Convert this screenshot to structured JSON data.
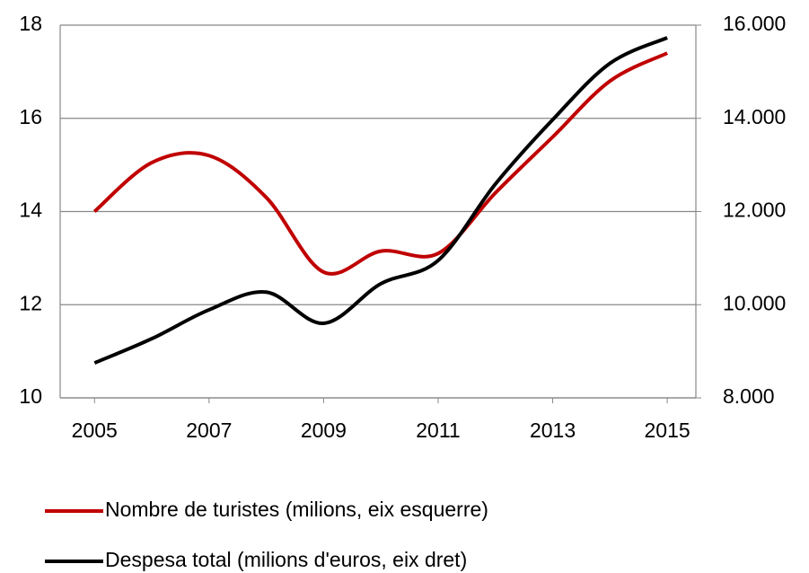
{
  "chart_data": {
    "type": "line",
    "x": [
      2005,
      2006,
      2007,
      2008,
      2009,
      2010,
      2011,
      2012,
      2013,
      2014,
      2015
    ],
    "xlim": [
      2004.4,
      2015.5
    ],
    "xticks": [
      2005,
      2007,
      2009,
      2011,
      2013,
      2015
    ],
    "ylim": [
      10,
      18
    ],
    "yticks": [
      10,
      12,
      14,
      16,
      18
    ],
    "y2lim": [
      8000,
      16000
    ],
    "y2ticks": [
      {
        "value": 8000,
        "label": "8.000"
      },
      {
        "value": 10000,
        "label": "10.000"
      },
      {
        "value": 12000,
        "label": "12.000"
      },
      {
        "value": 14000,
        "label": "14.000"
      },
      {
        "value": 16000,
        "label": "16.000"
      }
    ],
    "grid": true,
    "smooth": true,
    "legend": "bottom",
    "series": [
      {
        "name": "Nombre de turistes (milions, eix esquerre)",
        "color": "#c00000",
        "values": [
          14.0,
          15.05,
          15.2,
          14.3,
          12.7,
          13.15,
          13.1,
          14.4,
          15.6,
          16.8,
          17.4
        ]
      },
      {
        "name": "Despesa total (milions d'euros, eix dret)",
        "color": "#000000",
        "axis": "y2",
        "values": [
          8750,
          9270,
          9890,
          10270,
          9600,
          10450,
          10950,
          12590,
          13970,
          15180,
          15730
        ]
      }
    ]
  }
}
